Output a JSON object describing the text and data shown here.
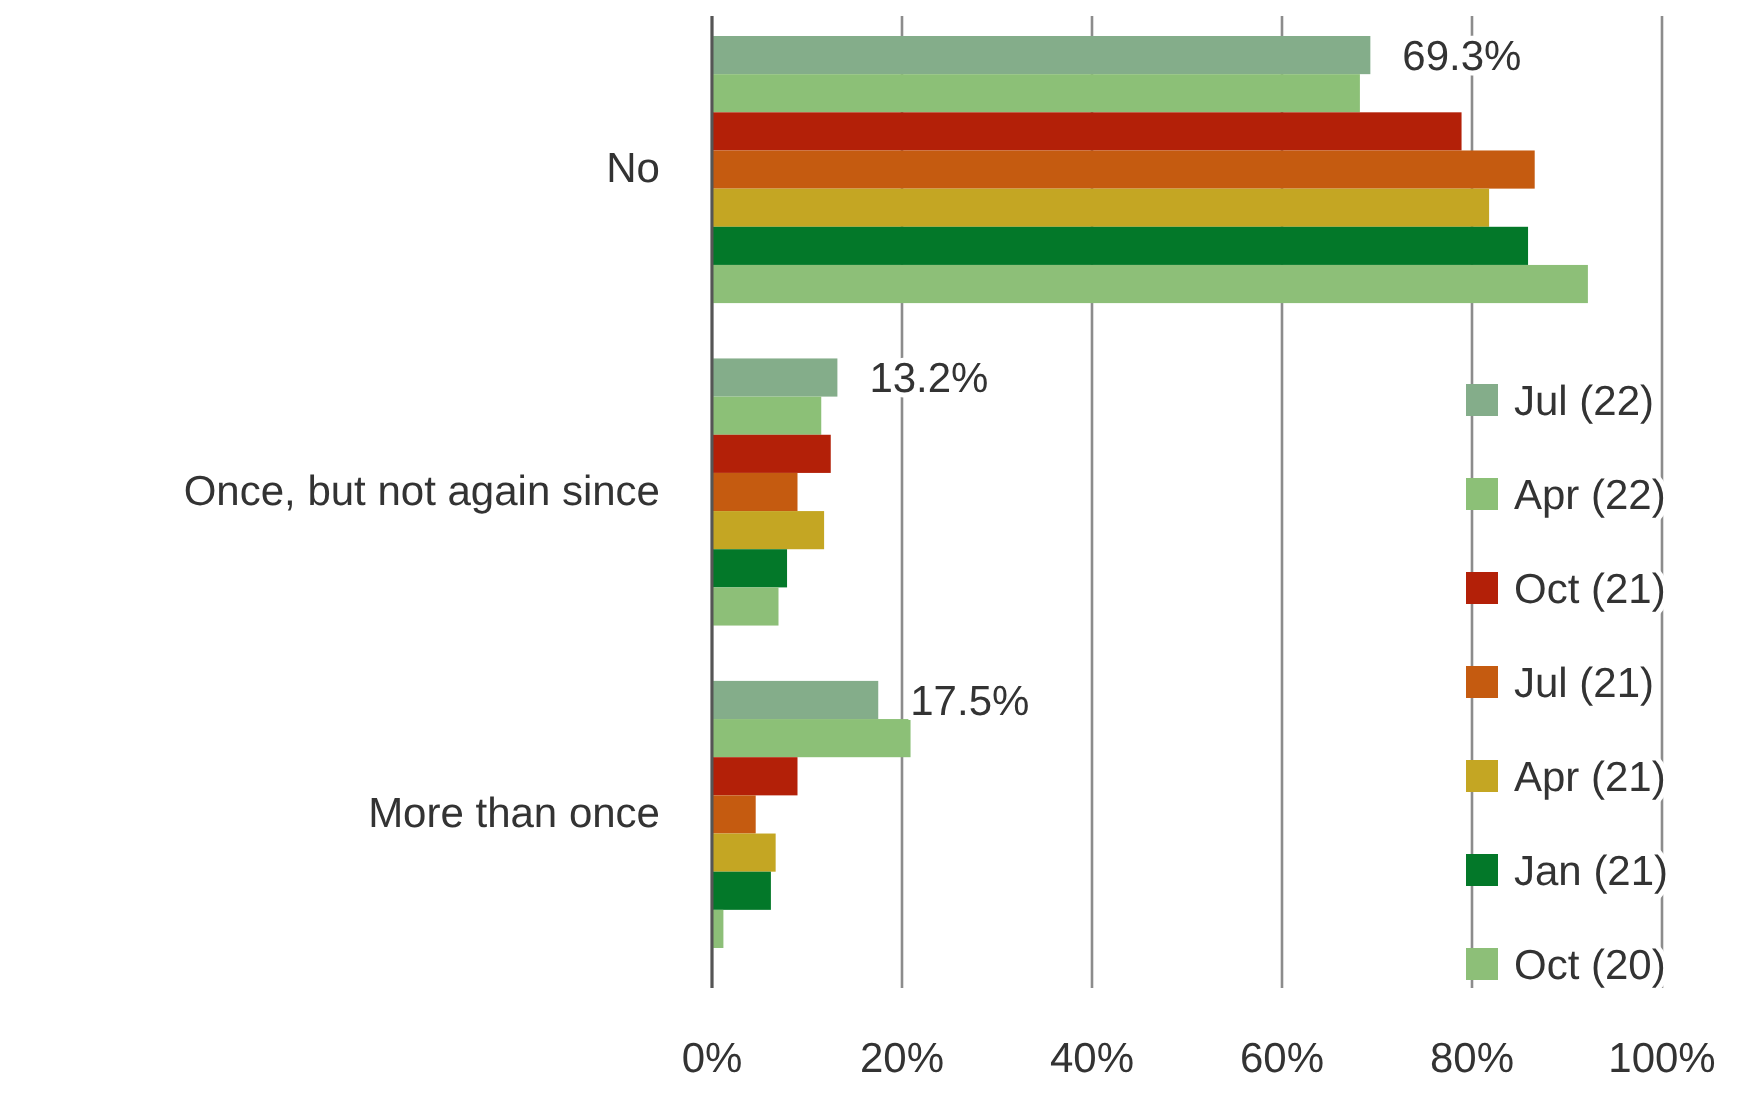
{
  "chart_data": {
    "type": "bar",
    "orientation": "horizontal",
    "categories": [
      "No",
      "Once, but not again since",
      "More than once"
    ],
    "series": [
      {
        "name": "Jul (22)",
        "color": "#84ad8a",
        "values": [
          69.3,
          13.2,
          17.5
        ],
        "value_labels": [
          "69.3%",
          "13.2%",
          "17.5%"
        ]
      },
      {
        "name": "Apr (22)",
        "color": "#8cc077",
        "values": [
          68.2,
          11.5,
          20.9
        ]
      },
      {
        "name": "Oct (21)",
        "color": "#b32008",
        "values": [
          78.9,
          12.5,
          9.0
        ]
      },
      {
        "name": "Jul (21)",
        "color": "#c55b10",
        "values": [
          86.6,
          9.0,
          4.6
        ]
      },
      {
        "name": "Apr (21)",
        "color": "#c4a623",
        "values": [
          81.8,
          11.8,
          6.7
        ]
      },
      {
        "name": "Jan (21)",
        "color": "#037829",
        "values": [
          85.9,
          7.9,
          6.2
        ]
      },
      {
        "name": "Oct (20)",
        "color": "#8dbf78",
        "values": [
          92.2,
          7.0,
          1.2
        ]
      }
    ],
    "xlim": [
      0,
      100
    ],
    "xticks": [
      {
        "value": 0,
        "label": "0%"
      },
      {
        "value": 20,
        "label": "20%"
      },
      {
        "value": 40,
        "label": "40%"
      },
      {
        "value": 60,
        "label": "60%"
      },
      {
        "value": 80,
        "label": "80%"
      },
      {
        "value": 100,
        "label": "100%"
      }
    ],
    "grid": "x",
    "legend": "right"
  }
}
